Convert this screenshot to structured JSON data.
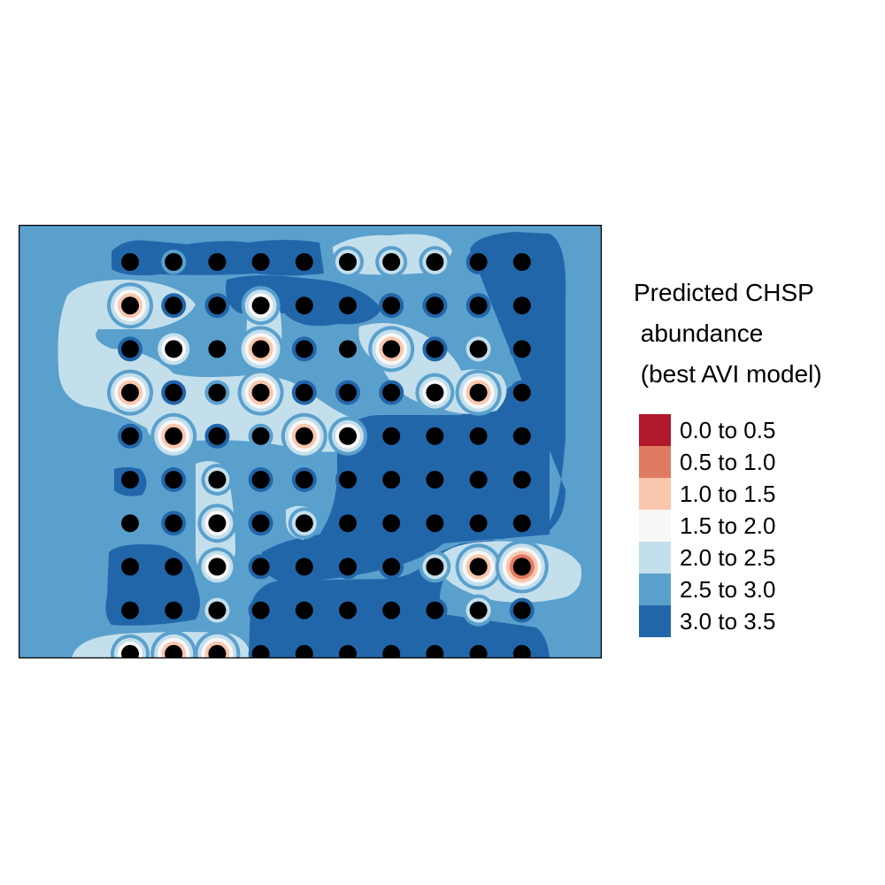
{
  "chart_data": {
    "type": "heatmap",
    "title": "Predicted CHSP abundance (best AVI model)",
    "title_lines": [
      "Predicted CHSP",
      " abundance",
      " (best AVI model)"
    ],
    "background_class": "2.5 to 3.0",
    "legend": {
      "placement": "right",
      "classes": [
        {
          "label": "0.0 to 0.5",
          "min": 0.0,
          "max": 0.5,
          "color": "#b2182b"
        },
        {
          "label": "0.5 to 1.0",
          "min": 0.5,
          "max": 1.0,
          "color": "#e07b63"
        },
        {
          "label": "1.0 to 1.5",
          "min": 1.0,
          "max": 1.5,
          "color": "#f9c7ad"
        },
        {
          "label": "1.5 to 2.0",
          "min": 1.5,
          "max": 2.0,
          "color": "#f7f7f7"
        },
        {
          "label": "2.0 to 2.5",
          "min": 2.0,
          "max": 2.5,
          "color": "#c4dfec"
        },
        {
          "label": "2.5 to 3.0",
          "min": 2.5,
          "max": 3.0,
          "color": "#5aa0cd"
        },
        {
          "label": "3.0 to 3.5",
          "min": 3.0,
          "max": 3.5,
          "color": "#2266aa"
        }
      ]
    },
    "survey_points": {
      "columns": 10,
      "rows": 10,
      "predicted_values": [
        [
          3.1,
          2.8,
          3.2,
          3.1,
          3.2,
          2.3,
          2.3,
          2.3,
          3.2,
          3.2
        ],
        [
          1.2,
          3.1,
          3.1,
          1.6,
          3.1,
          3.1,
          3.1,
          3.1,
          3.1,
          3.2
        ],
        [
          3.1,
          1.9,
          2.8,
          1.3,
          3.0,
          2.8,
          1.2,
          3.0,
          2.4,
          3.2
        ],
        [
          1.2,
          3.1,
          2.6,
          1.3,
          3.1,
          3.1,
          3.1,
          1.8,
          1.4,
          3.2
        ],
        [
          3.1,
          1.3,
          3.1,
          2.9,
          1.3,
          1.7,
          3.2,
          3.2,
          3.2,
          3.2
        ],
        [
          3.1,
          3.1,
          2.3,
          3.1,
          3.1,
          3.2,
          3.2,
          3.2,
          3.2,
          3.2
        ],
        [
          2.8,
          3.1,
          1.6,
          3.1,
          2.4,
          3.2,
          3.2,
          3.2,
          3.2,
          3.2
        ],
        [
          3.1,
          3.1,
          1.7,
          3.1,
          3.2,
          3.2,
          3.2,
          2.4,
          1.2,
          0.9
        ],
        [
          3.1,
          3.1,
          2.3,
          3.2,
          3.2,
          3.2,
          3.2,
          3.2,
          2.4,
          3.2
        ],
        [
          1.7,
          1.4,
          1.1,
          3.2,
          3.2,
          3.2,
          3.2,
          3.2,
          3.2,
          3.2
        ]
      ]
    }
  }
}
